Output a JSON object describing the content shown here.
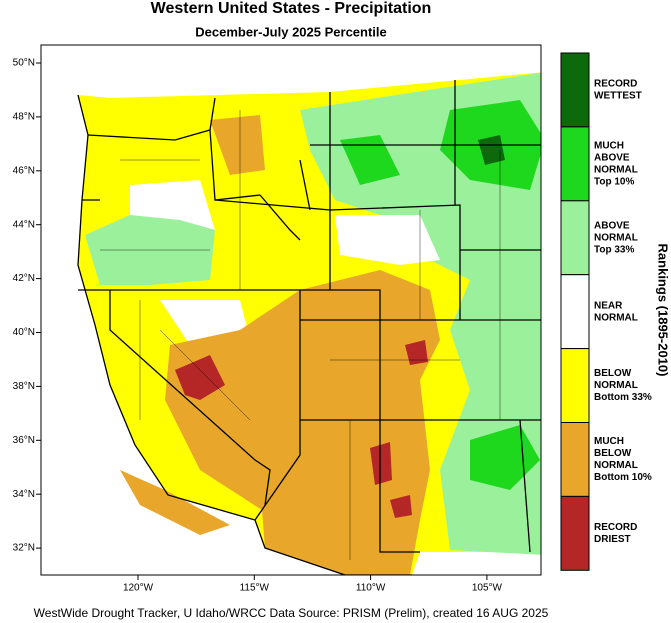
{
  "title": "Western United States - Precipitation",
  "subtitle": "December-July 2025 Percentile",
  "map": {
    "lat_labels": [
      "50°N",
      "48°N",
      "46°N",
      "44°N",
      "42°N",
      "40°N",
      "38°N",
      "36°N",
      "34°N",
      "32°N"
    ],
    "lon_labels": [
      "120°W",
      "115°W",
      "110°W",
      "105°W"
    ]
  },
  "legend": {
    "title": "Rankings (1895-2010)",
    "items": [
      {
        "lines": [
          "RECORD",
          "WETTEST"
        ],
        "color": "#0c6a0c"
      },
      {
        "lines": [
          "MUCH",
          "ABOVE",
          "NORMAL",
          "Top 10%"
        ],
        "color": "#1ed81e"
      },
      {
        "lines": [
          "ABOVE",
          "NORMAL",
          "Top 33%"
        ],
        "color": "#9bf09b"
      },
      {
        "lines": [
          "NEAR",
          "NORMAL"
        ],
        "color": "#ffffff"
      },
      {
        "lines": [
          "BELOW",
          "NORMAL",
          "Bottom 33%"
        ],
        "color": "#ffff00"
      },
      {
        "lines": [
          "MUCH",
          "BELOW",
          "NORMAL",
          "Bottom 10%"
        ],
        "color": "#e8a62a"
      },
      {
        "lines": [
          "RECORD",
          "DRIEST"
        ],
        "color": "#b52626"
      }
    ]
  },
  "footer": "WestWide Drought Tracker, U Idaho/WRCC Data Source: PRISM (Prelim), created 16 AUG 2025"
}
